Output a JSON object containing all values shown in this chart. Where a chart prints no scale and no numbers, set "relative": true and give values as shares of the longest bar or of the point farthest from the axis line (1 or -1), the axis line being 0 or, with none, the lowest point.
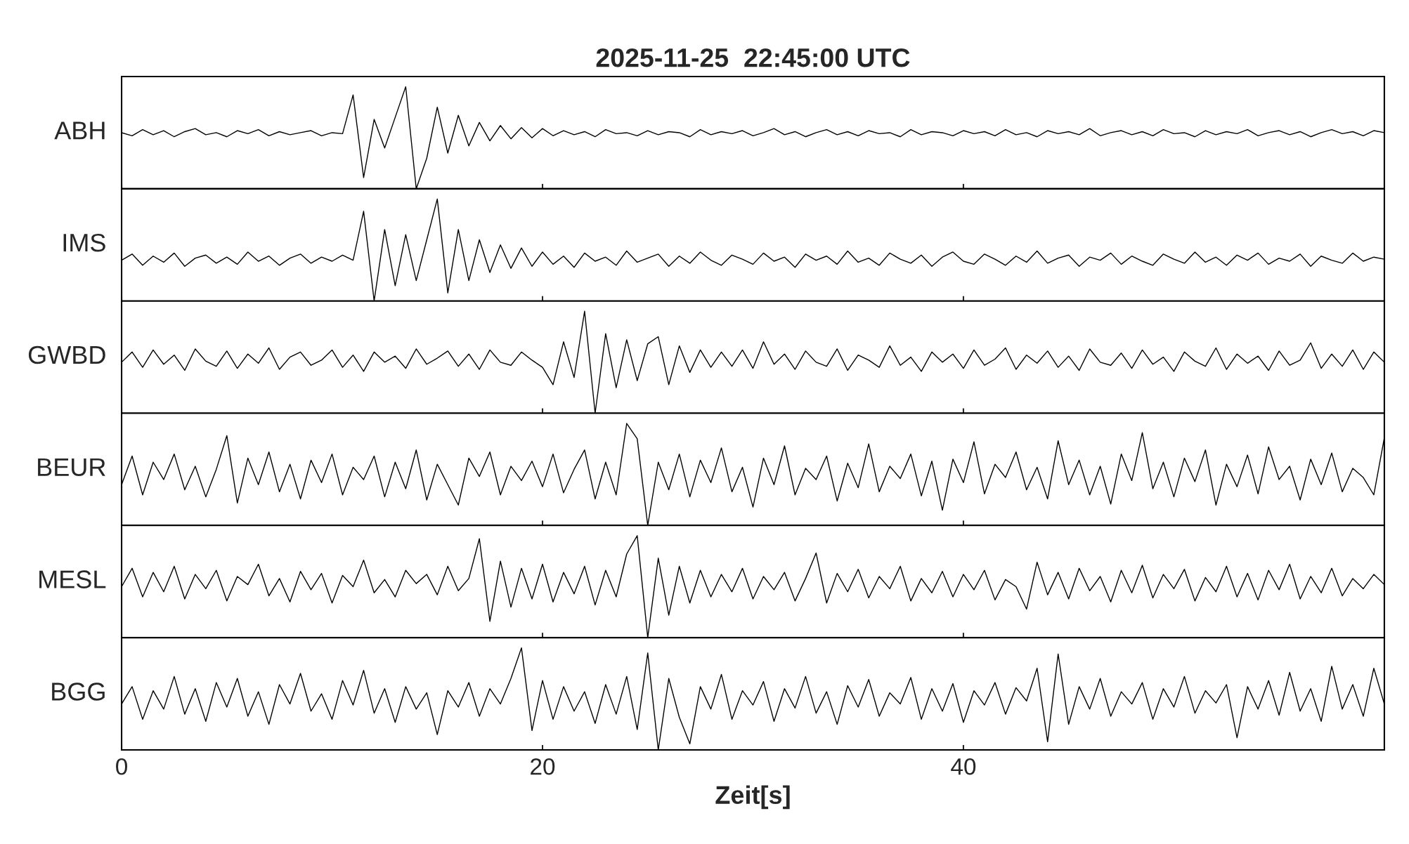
{
  "chart_data": [
    {
      "type": "line",
      "relative": true,
      "title": "2025-11-25  22:45:00 UTC",
      "ylabel": "ABH",
      "xlim": [
        0,
        60
      ],
      "xticks": [
        0,
        20,
        40
      ],
      "tick_labels": false,
      "x": [
        0,
        0.5,
        1,
        1.5,
        2,
        2.5,
        3,
        3.5,
        4,
        4.5,
        5,
        5.5,
        6,
        6.5,
        7,
        7.5,
        8,
        8.5,
        9,
        9.5,
        10,
        10.5,
        11,
        11.5,
        12,
        12.5,
        13,
        13.5,
        14,
        14.5,
        15,
        15.5,
        16,
        16.5,
        17,
        17.5,
        18,
        18.5,
        19,
        19.5,
        20,
        20.5,
        21,
        21.5,
        22,
        22.5,
        23,
        23.5,
        24,
        24.5,
        25,
        25.5,
        26,
        26.5,
        27,
        27.5,
        28,
        28.5,
        29,
        29.5,
        30,
        30.5,
        31,
        31.5,
        32,
        32.5,
        33,
        33.5,
        34,
        34.5,
        35,
        35.5,
        36,
        36.5,
        37,
        37.5,
        38,
        38.5,
        39,
        39.5,
        40,
        40.5,
        41,
        41.5,
        42,
        42.5,
        43,
        43.5,
        44,
        44.5,
        45,
        45.5,
        46,
        46.5,
        47,
        47.5,
        48,
        48.5,
        49,
        49.5,
        50,
        50.5,
        51,
        51.5,
        52,
        52.5,
        53,
        53.5,
        54,
        54.5,
        55,
        55.5,
        56,
        56.5,
        57,
        57.5,
        58,
        58.5,
        59,
        59.5,
        60
      ],
      "series": [
        {
          "color": "#000000",
          "values": [
            0.55,
            0.52,
            0.58,
            0.53,
            0.57,
            0.51,
            0.56,
            0.59,
            0.53,
            0.55,
            0.51,
            0.57,
            0.54,
            0.58,
            0.52,
            0.56,
            0.53,
            0.55,
            0.57,
            0.52,
            0.55,
            0.54,
            0.92,
            0.11,
            0.68,
            0.4,
            0.7,
            1.0,
            0.0,
            0.3,
            0.8,
            0.35,
            0.72,
            0.42,
            0.65,
            0.47,
            0.62,
            0.49,
            0.6,
            0.5,
            0.59,
            0.52,
            0.57,
            0.53,
            0.56,
            0.51,
            0.58,
            0.54,
            0.55,
            0.52,
            0.57,
            0.53,
            0.56,
            0.55,
            0.51,
            0.58,
            0.53,
            0.56,
            0.54,
            0.57,
            0.52,
            0.55,
            0.59,
            0.53,
            0.56,
            0.51,
            0.55,
            0.58,
            0.53,
            0.56,
            0.52,
            0.57,
            0.54,
            0.55,
            0.51,
            0.58,
            0.53,
            0.56,
            0.55,
            0.52,
            0.57,
            0.54,
            0.56,
            0.52,
            0.58,
            0.53,
            0.55,
            0.51,
            0.57,
            0.54,
            0.56,
            0.53,
            0.59,
            0.52,
            0.55,
            0.57,
            0.53,
            0.56,
            0.52,
            0.58,
            0.54,
            0.55,
            0.51,
            0.57,
            0.53,
            0.56,
            0.54,
            0.58,
            0.52,
            0.55,
            0.57,
            0.53,
            0.56,
            0.51,
            0.55,
            0.58,
            0.54,
            0.56,
            0.52,
            0.57,
            0.55
          ]
        }
      ]
    },
    {
      "type": "line",
      "relative": true,
      "ylabel": "IMS",
      "xlim": [
        0,
        60
      ],
      "xticks": [
        0,
        20,
        40
      ],
      "tick_labels": false,
      "x": [
        0,
        0.5,
        1,
        1.5,
        2,
        2.5,
        3,
        3.5,
        4,
        4.5,
        5,
        5.5,
        6,
        6.5,
        7,
        7.5,
        8,
        8.5,
        9,
        9.5,
        10,
        10.5,
        11,
        11.5,
        12,
        12.5,
        13,
        13.5,
        14,
        14.5,
        15,
        15.5,
        16,
        16.5,
        17,
        17.5,
        18,
        18.5,
        19,
        19.5,
        20,
        20.5,
        21,
        21.5,
        22,
        22.5,
        23,
        23.5,
        24,
        24.5,
        25,
        25.5,
        26,
        26.5,
        27,
        27.5,
        28,
        28.5,
        29,
        29.5,
        30,
        30.5,
        31,
        31.5,
        32,
        32.5,
        33,
        33.5,
        34,
        34.5,
        35,
        35.5,
        36,
        36.5,
        37,
        37.5,
        38,
        38.5,
        39,
        39.5,
        40,
        40.5,
        41,
        41.5,
        42,
        42.5,
        43,
        43.5,
        44,
        44.5,
        45,
        45.5,
        46,
        46.5,
        47,
        47.5,
        48,
        48.5,
        49,
        49.5,
        50,
        50.5,
        51,
        51.5,
        52,
        52.5,
        53,
        53.5,
        54,
        54.5,
        55,
        55.5,
        56,
        56.5,
        57,
        57.5,
        58,
        58.5,
        59,
        59.5,
        60
      ],
      "series": [
        {
          "color": "#000000",
          "values": [
            0.4,
            0.46,
            0.35,
            0.44,
            0.38,
            0.47,
            0.34,
            0.42,
            0.45,
            0.37,
            0.43,
            0.36,
            0.48,
            0.39,
            0.44,
            0.35,
            0.42,
            0.46,
            0.37,
            0.43,
            0.39,
            0.45,
            0.4,
            0.88,
            0.0,
            0.7,
            0.15,
            0.65,
            0.2,
            0.6,
            1.0,
            0.08,
            0.7,
            0.2,
            0.6,
            0.28,
            0.55,
            0.32,
            0.52,
            0.34,
            0.48,
            0.36,
            0.44,
            0.33,
            0.47,
            0.39,
            0.43,
            0.35,
            0.49,
            0.38,
            0.42,
            0.46,
            0.34,
            0.44,
            0.37,
            0.48,
            0.4,
            0.35,
            0.45,
            0.41,
            0.36,
            0.47,
            0.39,
            0.43,
            0.33,
            0.46,
            0.4,
            0.44,
            0.36,
            0.49,
            0.38,
            0.42,
            0.35,
            0.47,
            0.41,
            0.37,
            0.45,
            0.34,
            0.43,
            0.48,
            0.39,
            0.36,
            0.46,
            0.41,
            0.35,
            0.44,
            0.38,
            0.49,
            0.37,
            0.42,
            0.45,
            0.34,
            0.43,
            0.4,
            0.47,
            0.36,
            0.44,
            0.39,
            0.35,
            0.46,
            0.41,
            0.37,
            0.48,
            0.38,
            0.43,
            0.35,
            0.45,
            0.4,
            0.47,
            0.36,
            0.42,
            0.39,
            0.46,
            0.34,
            0.44,
            0.4,
            0.37,
            0.47,
            0.39,
            0.43,
            0.41
          ]
        }
      ]
    },
    {
      "type": "line",
      "relative": true,
      "ylabel": "GWBD",
      "xlim": [
        0,
        60
      ],
      "xticks": [
        0,
        20,
        40
      ],
      "tick_labels": false,
      "x": [
        0,
        0.5,
        1,
        1.5,
        2,
        2.5,
        3,
        3.5,
        4,
        4.5,
        5,
        5.5,
        6,
        6.5,
        7,
        7.5,
        8,
        8.5,
        9,
        9.5,
        10,
        10.5,
        11,
        11.5,
        12,
        12.5,
        13,
        13.5,
        14,
        14.5,
        15,
        15.5,
        16,
        16.5,
        17,
        17.5,
        18,
        18.5,
        19,
        19.5,
        20,
        20.5,
        21,
        21.5,
        22,
        22.5,
        23,
        23.5,
        24,
        24.5,
        25,
        25.5,
        26,
        26.5,
        27,
        27.5,
        28,
        28.5,
        29,
        29.5,
        30,
        30.5,
        31,
        31.5,
        32,
        32.5,
        33,
        33.5,
        34,
        34.5,
        35,
        35.5,
        36,
        36.5,
        37,
        37.5,
        38,
        38.5,
        39,
        39.5,
        40,
        40.5,
        41,
        41.5,
        42,
        42.5,
        43,
        43.5,
        44,
        44.5,
        45,
        45.5,
        46,
        46.5,
        47,
        47.5,
        48,
        48.5,
        49,
        49.5,
        50,
        50.5,
        51,
        51.5,
        52,
        52.5,
        53,
        53.5,
        54,
        54.5,
        55,
        55.5,
        56,
        56.5,
        57,
        57.5,
        58,
        58.5,
        59,
        59.5,
        60
      ],
      "series": [
        {
          "color": "#000000",
          "values": [
            0.5,
            0.6,
            0.45,
            0.62,
            0.48,
            0.57,
            0.42,
            0.63,
            0.51,
            0.46,
            0.61,
            0.44,
            0.58,
            0.49,
            0.64,
            0.43,
            0.55,
            0.6,
            0.47,
            0.52,
            0.62,
            0.45,
            0.57,
            0.41,
            0.6,
            0.5,
            0.56,
            0.44,
            0.63,
            0.48,
            0.54,
            0.61,
            0.46,
            0.58,
            0.43,
            0.62,
            0.5,
            0.47,
            0.6,
            0.52,
            0.45,
            0.28,
            0.7,
            0.35,
            1.0,
            0.0,
            0.78,
            0.25,
            0.72,
            0.32,
            0.68,
            0.75,
            0.28,
            0.66,
            0.4,
            0.62,
            0.45,
            0.6,
            0.46,
            0.62,
            0.44,
            0.7,
            0.48,
            0.58,
            0.43,
            0.61,
            0.5,
            0.46,
            0.63,
            0.42,
            0.57,
            0.52,
            0.45,
            0.66,
            0.47,
            0.55,
            0.41,
            0.6,
            0.5,
            0.58,
            0.44,
            0.62,
            0.47,
            0.53,
            0.64,
            0.43,
            0.57,
            0.49,
            0.61,
            0.45,
            0.56,
            0.42,
            0.63,
            0.5,
            0.47,
            0.59,
            0.44,
            0.62,
            0.48,
            0.55,
            0.41,
            0.6,
            0.51,
            0.46,
            0.64,
            0.43,
            0.58,
            0.49,
            0.56,
            0.42,
            0.61,
            0.47,
            0.52,
            0.69,
            0.44,
            0.58,
            0.46,
            0.62,
            0.43,
            0.6,
            0.5
          ]
        }
      ]
    },
    {
      "type": "line",
      "relative": true,
      "ylabel": "BEUR",
      "xlim": [
        0,
        60
      ],
      "xticks": [
        0,
        20,
        40
      ],
      "tick_labels": false,
      "x": [
        0,
        0.5,
        1,
        1.5,
        2,
        2.5,
        3,
        3.5,
        4,
        4.5,
        5,
        5.5,
        6,
        6.5,
        7,
        7.5,
        8,
        8.5,
        9,
        9.5,
        10,
        10.5,
        11,
        11.5,
        12,
        12.5,
        13,
        13.5,
        14,
        14.5,
        15,
        15.5,
        16,
        16.5,
        17,
        17.5,
        18,
        18.5,
        19,
        19.5,
        20,
        20.5,
        21,
        21.5,
        22,
        22.5,
        23,
        23.5,
        24,
        24.5,
        25,
        25.5,
        26,
        26.5,
        27,
        27.5,
        28,
        28.5,
        29,
        29.5,
        30,
        30.5,
        31,
        31.5,
        32,
        32.5,
        33,
        33.5,
        34,
        34.5,
        35,
        35.5,
        36,
        36.5,
        37,
        37.5,
        38,
        38.5,
        39,
        39.5,
        40,
        40.5,
        41,
        41.5,
        42,
        42.5,
        43,
        43.5,
        44,
        44.5,
        45,
        45.5,
        46,
        46.5,
        47,
        47.5,
        48,
        48.5,
        49,
        49.5,
        50,
        50.5,
        51,
        51.5,
        52,
        52.5,
        53,
        53.5,
        54,
        54.5,
        55,
        55.5,
        56,
        56.5,
        57,
        57.5,
        58,
        58.5,
        59,
        59.5,
        60
      ],
      "series": [
        {
          "color": "#000000",
          "values": [
            0.4,
            0.68,
            0.3,
            0.62,
            0.45,
            0.7,
            0.35,
            0.58,
            0.28,
            0.55,
            0.88,
            0.22,
            0.66,
            0.4,
            0.72,
            0.33,
            0.6,
            0.26,
            0.64,
            0.42,
            0.7,
            0.3,
            0.57,
            0.45,
            0.68,
            0.28,
            0.62,
            0.36,
            0.74,
            0.25,
            0.6,
            0.4,
            0.2,
            0.66,
            0.48,
            0.72,
            0.3,
            0.58,
            0.44,
            0.63,
            0.38,
            0.7,
            0.32,
            0.55,
            0.74,
            0.26,
            0.62,
            0.3,
            1.0,
            0.85,
            0.0,
            0.62,
            0.35,
            0.7,
            0.28,
            0.64,
            0.42,
            0.76,
            0.33,
            0.57,
            0.18,
            0.66,
            0.4,
            0.78,
            0.3,
            0.56,
            0.45,
            0.68,
            0.24,
            0.61,
            0.37,
            0.8,
            0.33,
            0.58,
            0.46,
            0.7,
            0.29,
            0.63,
            0.15,
            0.65,
            0.42,
            0.82,
            0.31,
            0.6,
            0.47,
            0.72,
            0.35,
            0.57,
            0.26,
            0.83,
            0.4,
            0.64,
            0.3,
            0.58,
            0.21,
            0.7,
            0.44,
            0.91,
            0.36,
            0.62,
            0.28,
            0.66,
            0.43,
            0.74,
            0.2,
            0.6,
            0.38,
            0.69,
            0.31,
            0.77,
            0.45,
            0.58,
            0.25,
            0.65,
            0.4,
            0.71,
            0.33,
            0.56,
            0.47,
            0.3,
            0.86
          ]
        }
      ]
    },
    {
      "type": "line",
      "relative": true,
      "ylabel": "MESL",
      "xlim": [
        0,
        60
      ],
      "xticks": [
        0,
        20,
        40
      ],
      "tick_labels": false,
      "x": [
        0,
        0.5,
        1,
        1.5,
        2,
        2.5,
        3,
        3.5,
        4,
        4.5,
        5,
        5.5,
        6,
        6.5,
        7,
        7.5,
        8,
        8.5,
        9,
        9.5,
        10,
        10.5,
        11,
        11.5,
        12,
        12.5,
        13,
        13.5,
        14,
        14.5,
        15,
        15.5,
        16,
        16.5,
        17,
        17.5,
        18,
        18.5,
        19,
        19.5,
        20,
        20.5,
        21,
        21.5,
        22,
        22.5,
        23,
        23.5,
        24,
        24.5,
        25,
        25.5,
        26,
        26.5,
        27,
        27.5,
        28,
        28.5,
        29,
        29.5,
        30,
        30.5,
        31,
        31.5,
        32,
        32.5,
        33,
        33.5,
        34,
        34.5,
        35,
        35.5,
        36,
        36.5,
        37,
        37.5,
        38,
        38.5,
        39,
        39.5,
        40,
        40.5,
        41,
        41.5,
        42,
        42.5,
        43,
        43.5,
        44,
        44.5,
        45,
        45.5,
        46,
        46.5,
        47,
        47.5,
        48,
        48.5,
        49,
        49.5,
        50,
        50.5,
        51,
        51.5,
        52,
        52.5,
        53,
        53.5,
        54,
        54.5,
        55,
        55.5,
        56,
        56.5,
        57,
        57.5,
        58,
        58.5,
        59,
        59.5,
        60
      ],
      "series": [
        {
          "color": "#000000",
          "values": [
            0.5,
            0.68,
            0.4,
            0.64,
            0.45,
            0.7,
            0.38,
            0.62,
            0.48,
            0.66,
            0.36,
            0.6,
            0.52,
            0.72,
            0.41,
            0.58,
            0.35,
            0.65,
            0.47,
            0.63,
            0.34,
            0.61,
            0.5,
            0.76,
            0.44,
            0.57,
            0.4,
            0.66,
            0.53,
            0.62,
            0.42,
            0.7,
            0.46,
            0.58,
            0.97,
            0.16,
            0.75,
            0.3,
            0.68,
            0.38,
            0.72,
            0.35,
            0.64,
            0.43,
            0.7,
            0.32,
            0.66,
            0.4,
            0.82,
            1.0,
            0.0,
            0.78,
            0.22,
            0.7,
            0.34,
            0.66,
            0.4,
            0.62,
            0.45,
            0.68,
            0.38,
            0.6,
            0.47,
            0.64,
            0.36,
            0.58,
            0.83,
            0.34,
            0.63,
            0.45,
            0.67,
            0.39,
            0.6,
            0.48,
            0.7,
            0.36,
            0.58,
            0.44,
            0.65,
            0.4,
            0.62,
            0.47,
            0.66,
            0.37,
            0.57,
            0.5,
            0.28,
            0.74,
            0.42,
            0.64,
            0.38,
            0.68,
            0.46,
            0.6,
            0.35,
            0.66,
            0.44,
            0.71,
            0.39,
            0.62,
            0.48,
            0.67,
            0.36,
            0.59,
            0.45,
            0.7,
            0.4,
            0.63,
            0.37,
            0.66,
            0.47,
            0.72,
            0.38,
            0.6,
            0.44,
            0.68,
            0.41,
            0.58,
            0.48,
            0.62,
            0.52
          ]
        }
      ]
    },
    {
      "type": "line",
      "relative": true,
      "ylabel": "BGG",
      "xlabel": "Zeit[s]",
      "xlim": [
        0,
        60
      ],
      "xticks": [
        0,
        20,
        40
      ],
      "tick_labels": "x",
      "x": [
        0,
        0.5,
        1,
        1.5,
        2,
        2.5,
        3,
        3.5,
        4,
        4.5,
        5,
        5.5,
        6,
        6.5,
        7,
        7.5,
        8,
        8.5,
        9,
        9.5,
        10,
        10.5,
        11,
        11.5,
        12,
        12.5,
        13,
        13.5,
        14,
        14.5,
        15,
        15.5,
        16,
        16.5,
        17,
        17.5,
        18,
        18.5,
        19,
        19.5,
        20,
        20.5,
        21,
        21.5,
        22,
        22.5,
        23,
        23.5,
        24,
        24.5,
        25,
        25.5,
        26,
        26.5,
        27,
        27.5,
        28,
        28.5,
        29,
        29.5,
        30,
        30.5,
        31,
        31.5,
        32,
        32.5,
        33,
        33.5,
        34,
        34.5,
        35,
        35.5,
        36,
        36.5,
        37,
        37.5,
        38,
        38.5,
        39,
        39.5,
        40,
        40.5,
        41,
        41.5,
        42,
        42.5,
        43,
        43.5,
        44,
        44.5,
        45,
        45.5,
        46,
        46.5,
        47,
        47.5,
        48,
        48.5,
        49,
        49.5,
        50,
        50.5,
        51,
        51.5,
        52,
        52.5,
        53,
        53.5,
        54,
        54.5,
        55,
        55.5,
        56,
        56.5,
        57,
        57.5,
        58,
        58.5,
        59,
        59.5,
        60
      ],
      "series": [
        {
          "color": "#000000",
          "values": [
            0.45,
            0.62,
            0.3,
            0.58,
            0.4,
            0.72,
            0.35,
            0.6,
            0.28,
            0.66,
            0.42,
            0.7,
            0.33,
            0.57,
            0.25,
            0.64,
            0.45,
            0.75,
            0.38,
            0.55,
            0.3,
            0.68,
            0.44,
            0.78,
            0.36,
            0.6,
            0.27,
            0.62,
            0.4,
            0.56,
            0.15,
            0.58,
            0.42,
            0.66,
            0.33,
            0.6,
            0.45,
            0.7,
            1.0,
            0.19,
            0.68,
            0.3,
            0.62,
            0.38,
            0.57,
            0.26,
            0.64,
            0.35,
            0.72,
            0.2,
            0.95,
            0.0,
            0.7,
            0.32,
            0.06,
            0.62,
            0.4,
            0.74,
            0.3,
            0.58,
            0.44,
            0.67,
            0.28,
            0.6,
            0.41,
            0.72,
            0.36,
            0.57,
            0.25,
            0.63,
            0.42,
            0.69,
            0.33,
            0.56,
            0.45,
            0.71,
            0.3,
            0.6,
            0.38,
            0.65,
            0.27,
            0.58,
            0.44,
            0.66,
            0.35,
            0.61,
            0.48,
            0.8,
            0.08,
            0.94,
            0.25,
            0.62,
            0.4,
            0.7,
            0.33,
            0.57,
            0.45,
            0.66,
            0.3,
            0.6,
            0.42,
            0.72,
            0.36,
            0.58,
            0.46,
            0.64,
            0.12,
            0.62,
            0.4,
            0.68,
            0.34,
            0.76,
            0.38,
            0.6,
            0.28,
            0.82,
            0.4,
            0.64,
            0.33,
            0.8,
            0.45
          ]
        }
      ]
    }
  ]
}
